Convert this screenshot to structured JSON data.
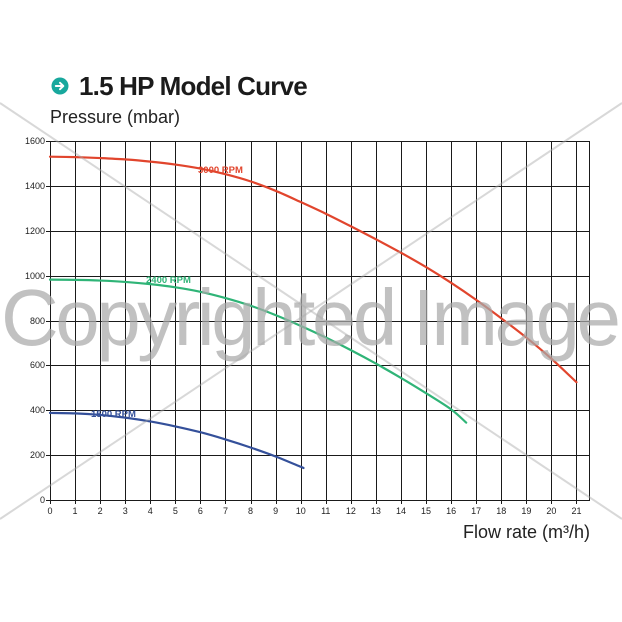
{
  "watermark": "Copyrighted Image",
  "icons": {
    "title_icon": "arrow-right-circle-icon"
  },
  "colors": {
    "accent": "#18a89d",
    "grid": "#1a1a1a",
    "watermark": "#a9a9a9"
  },
  "chart_data": {
    "type": "line",
    "title": "1.5 HP Model Curve",
    "ylabel": "Pressure (mbar)",
    "xlabel": "Flow rate (m³/h)",
    "xlim": [
      0,
      21.5
    ],
    "ylim": [
      0,
      1600
    ],
    "x_ticks": [
      0,
      1,
      2,
      3,
      4,
      5,
      6,
      7,
      8,
      9,
      10,
      11,
      12,
      13,
      14,
      15,
      16,
      17,
      18,
      19,
      20,
      21
    ],
    "y_ticks": [
      0,
      200,
      400,
      600,
      800,
      1000,
      1200,
      1400,
      1600
    ],
    "grid": true,
    "series": [
      {
        "name": "3000 RPM",
        "color": "#e1452d",
        "points": [
          [
            0,
            1530
          ],
          [
            1,
            1528
          ],
          [
            2,
            1524
          ],
          [
            3,
            1518
          ],
          [
            4,
            1508
          ],
          [
            5,
            1495
          ],
          [
            6,
            1477
          ],
          [
            7,
            1452
          ],
          [
            8,
            1420
          ],
          [
            9,
            1378
          ],
          [
            10,
            1328
          ],
          [
            11,
            1276
          ],
          [
            12,
            1220
          ],
          [
            13,
            1162
          ],
          [
            14,
            1102
          ],
          [
            15,
            1038
          ],
          [
            16,
            968
          ],
          [
            17,
            892
          ],
          [
            18,
            810
          ],
          [
            19,
            724
          ],
          [
            20,
            630
          ],
          [
            21,
            525
          ]
        ]
      },
      {
        "name": "2400 RPM",
        "color": "#2fb477",
        "points": [
          [
            0,
            982
          ],
          [
            1,
            981
          ],
          [
            2,
            978
          ],
          [
            3,
            972
          ],
          [
            4,
            962
          ],
          [
            5,
            948
          ],
          [
            6,
            928
          ],
          [
            7,
            900
          ],
          [
            8,
            866
          ],
          [
            9,
            824
          ],
          [
            10,
            776
          ],
          [
            11,
            724
          ],
          [
            12,
            668
          ],
          [
            13,
            608
          ],
          [
            14,
            544
          ],
          [
            15,
            476
          ],
          [
            16,
            404
          ],
          [
            16.6,
            345
          ]
        ]
      },
      {
        "name": "1500 RPM",
        "color": "#34509a",
        "points": [
          [
            0,
            388
          ],
          [
            1,
            386
          ],
          [
            2,
            379
          ],
          [
            3,
            367
          ],
          [
            4,
            350
          ],
          [
            5,
            328
          ],
          [
            6,
            302
          ],
          [
            7,
            270
          ],
          [
            8,
            234
          ],
          [
            9,
            194
          ],
          [
            10,
            148
          ],
          [
            10.1,
            143
          ]
        ]
      }
    ]
  }
}
